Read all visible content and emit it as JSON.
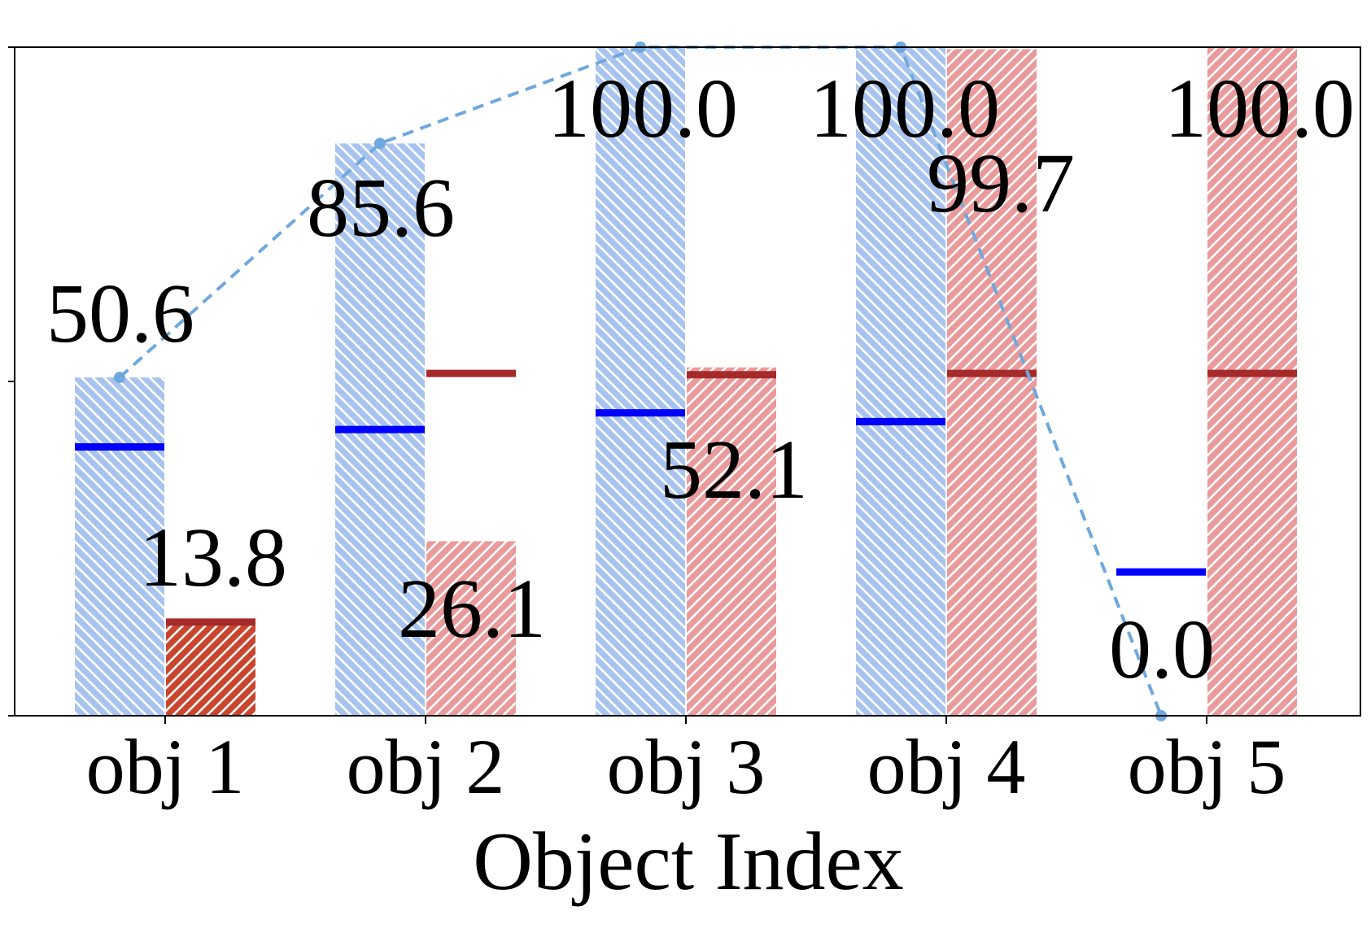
{
  "chart_data": {
    "type": "bar",
    "categories": [
      "obj 1",
      "obj 2",
      "obj 3",
      "obj 4",
      "obj 5"
    ],
    "xlabel": "Object Index",
    "ylabel": "",
    "title": "",
    "ylim": [
      0,
      100
    ],
    "grid": false,
    "legend": "none",
    "series": [
      {
        "key": "blue",
        "values": [
          50.6,
          85.6,
          100.0,
          100.0,
          0.0
        ],
        "color": "#A8C4EE",
        "hatch": "backslash",
        "labels": [
          "50.6",
          "85.6",
          "100.0",
          "100.0",
          "0.0"
        ]
      },
      {
        "key": "red",
        "values": [
          13.8,
          26.1,
          52.1,
          99.7,
          100.0
        ],
        "color": "#E99A9A",
        "highlight_color": "#C9452E",
        "highlight_index": 0,
        "hatch": "slash",
        "labels": [
          "13.8",
          "26.1",
          "52.1",
          "99.7",
          "100.0"
        ]
      }
    ],
    "blue_markers": {
      "values": [
        40.2,
        42.8,
        45.3,
        44.0,
        21.5
      ],
      "color": "#0000FF"
    },
    "red_markers": {
      "values": [
        14.0,
        51.2,
        51.0,
        51.2,
        51.2
      ],
      "color": "#A52A2A"
    },
    "trend_line": {
      "values": [
        50.6,
        85.6,
        100.0,
        100.0,
        0.0
      ],
      "color": "#6FA8DC",
      "style": "dashed"
    }
  }
}
